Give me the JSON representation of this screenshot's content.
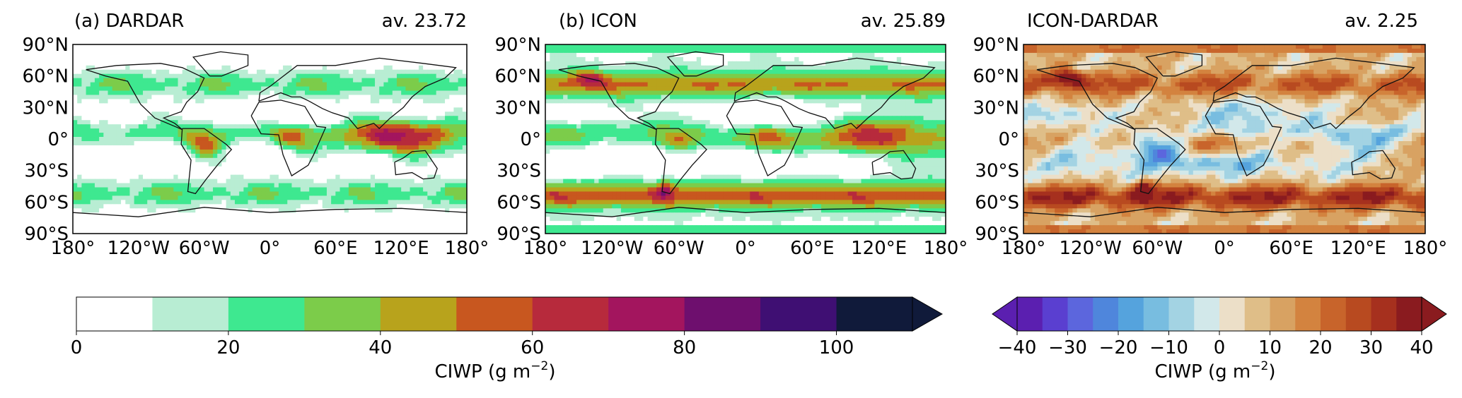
{
  "panels": [
    {
      "id": "dardar",
      "title": "(a) DARDAR",
      "average": "av. 23.72",
      "scale": "abs",
      "field": "dardar"
    },
    {
      "id": "icon",
      "title": "(b) ICON",
      "average": "av. 25.89",
      "scale": "abs",
      "field": "icon"
    },
    {
      "id": "diff",
      "title": "ICON-DARDAR",
      "average": "av. 2.25",
      "scale": "diff",
      "field": "diff"
    }
  ],
  "axes": {
    "lat_ticks": [
      "90°N",
      "60°N",
      "30°N",
      "0°",
      "30°S",
      "60°S",
      "90°S"
    ],
    "lon_ticks": [
      "180°",
      "120°W",
      "60°W",
      "0°",
      "60°E",
      "120°E",
      "180°"
    ]
  },
  "colorbars": [
    {
      "id": "abs",
      "label": "CIWP (g m",
      "label_sup": "−2",
      "label_close": ")",
      "levels": [
        0,
        10,
        20,
        30,
        40,
        50,
        60,
        70,
        80,
        90,
        100,
        110
      ],
      "tick_labels": [
        "0",
        "20",
        "40",
        "60",
        "80",
        "100"
      ],
      "tick_values": [
        0,
        20,
        40,
        60,
        80,
        100
      ],
      "colors": [
        "#ffffff",
        "#b8edd3",
        "#3ee890",
        "#7ccc4a",
        "#b8a31c",
        "#c8571f",
        "#b72a3c",
        "#a3155e",
        "#6e0f6e",
        "#3f0f73",
        "#101a3a"
      ],
      "extend": "max"
    },
    {
      "id": "diff",
      "label": "CIWP (g m",
      "label_sup": "−2",
      "label_close": ")",
      "levels": [
        -40,
        -35,
        -30,
        -25,
        -20,
        -15,
        -10,
        -5,
        0,
        5,
        10,
        15,
        20,
        25,
        30,
        35,
        40
      ],
      "tick_labels": [
        "−40",
        "−30",
        "−20",
        "−10",
        "0",
        "10",
        "20",
        "30",
        "40"
      ],
      "tick_values": [
        -40,
        -30,
        -20,
        -10,
        0,
        10,
        20,
        30,
        40
      ],
      "colors": [
        "#5b1fb0",
        "#5a3fd0",
        "#5c66dd",
        "#4f86dc",
        "#55a3dd",
        "#78bde0",
        "#a3d3e3",
        "#d2e8ea",
        "#ecdfc8",
        "#dfbe88",
        "#d8a262",
        "#d3833f",
        "#c8642b",
        "#b84a20",
        "#a6301e",
        "#8a1b1f"
      ],
      "extend": "both"
    }
  ]
}
